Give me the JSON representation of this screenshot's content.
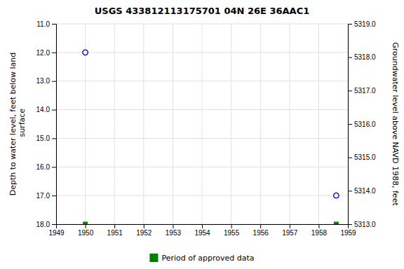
{
  "chart_data": {
    "type": "scatter",
    "title": "USGS 433812113175701 04N 26E 36AAC1",
    "y_label": "Depth to water level, feet below land\n surface",
    "y2_label": "Groundwater level above NAVD 1988, feet",
    "xlim": [
      1949,
      1959
    ],
    "xticks": [
      1949,
      1950,
      1951,
      1952,
      1953,
      1954,
      1955,
      1956,
      1957,
      1958,
      1959
    ],
    "ylim": [
      18.0,
      11.0
    ],
    "yticks": [
      {
        "value": 11.0,
        "label": "11.0"
      },
      {
        "value": 12.0,
        "label": "12.0"
      },
      {
        "value": 13.0,
        "label": "13.0"
      },
      {
        "value": 14.0,
        "label": "14.0"
      },
      {
        "value": 15.0,
        "label": "15.0"
      },
      {
        "value": 16.0,
        "label": "16.0"
      },
      {
        "value": 17.0,
        "label": "17.0"
      },
      {
        "value": 18.0,
        "label": "18.0"
      }
    ],
    "y2lim": [
      5313.0,
      5319.0
    ],
    "y2ticks": [
      {
        "value": 5319.0,
        "label": "5319.0"
      },
      {
        "value": 5318.0,
        "label": "5318.0"
      },
      {
        "value": 5317.0,
        "label": "5317.0"
      },
      {
        "value": 5316.0,
        "label": "5316.0"
      },
      {
        "value": 5315.0,
        "label": "5315.0"
      },
      {
        "value": 5314.0,
        "label": "5314.0"
      },
      {
        "value": 5313.0,
        "label": "5313.0"
      }
    ],
    "grid": true,
    "legend": "bottom",
    "series": [
      {
        "color": "#0000cc",
        "marker": "circle",
        "x": [
          1950.0,
          1958.6
        ],
        "values": [
          12.0,
          17.0
        ]
      },
      {
        "name": "Period of approved data",
        "color": "#008000",
        "marker": "square",
        "x": [
          1950.0,
          1958.6
        ],
        "values": [
          18.0,
          18.0
        ]
      }
    ]
  }
}
